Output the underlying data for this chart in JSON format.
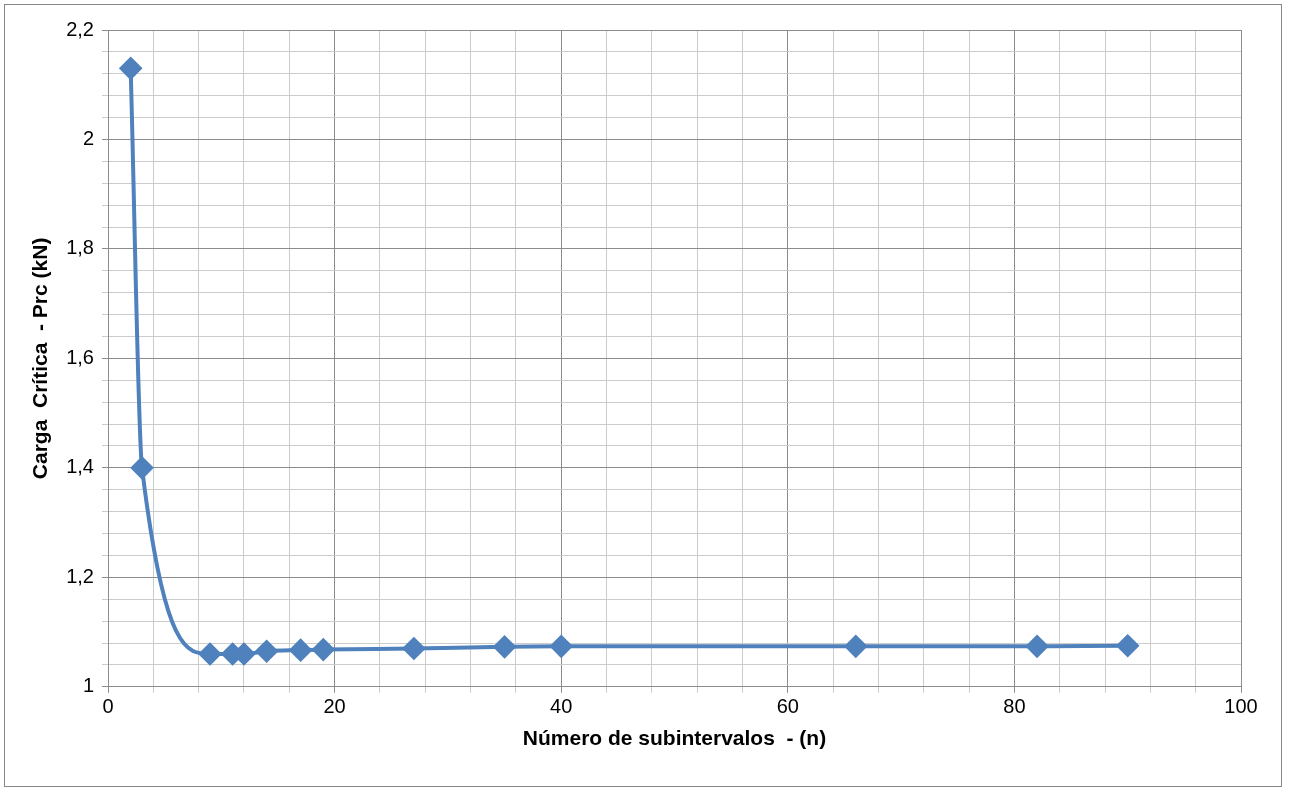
{
  "chart_data": {
    "type": "line",
    "xlabel": "Número de subintervalos  - (n)",
    "ylabel": "Carga  Crítica  - Prc (kN)",
    "x": [
      2,
      3,
      9,
      11,
      12,
      14,
      17,
      19,
      27,
      35,
      40,
      66,
      82,
      90
    ],
    "series": [
      {
        "color": "#4f81bd",
        "values": [
          2.13,
          1.4,
          1.06,
          1.06,
          1.06,
          1.065,
          1.067,
          1.068,
          1.07,
          1.073,
          1.074,
          1.074,
          1.074,
          1.075
        ]
      }
    ],
    "xlim": [
      0,
      100
    ],
    "xticks": [
      0,
      {
        "value": 4,
        "label": null
      },
      {
        "value": 8,
        "label": null
      },
      {
        "value": 12,
        "label": null
      },
      {
        "value": 16,
        "label": null
      },
      20,
      {
        "value": 24,
        "label": null
      },
      {
        "value": 28,
        "label": null
      },
      {
        "value": 32,
        "label": null
      },
      {
        "value": 36,
        "label": null
      },
      40,
      {
        "value": 44,
        "label": null
      },
      {
        "value": 48,
        "label": null
      },
      {
        "value": 52,
        "label": null
      },
      {
        "value": 56,
        "label": null
      },
      60,
      {
        "value": 64,
        "label": null
      },
      {
        "value": 68,
        "label": null
      },
      {
        "value": 72,
        "label": null
      },
      {
        "value": 76,
        "label": null
      },
      80,
      {
        "value": 84,
        "label": null
      },
      {
        "value": 88,
        "label": null
      },
      {
        "value": 92,
        "label": null
      },
      {
        "value": 96,
        "label": null
      },
      100
    ],
    "ylim": [
      1,
      2.2
    ],
    "yticks": [
      1,
      {
        "value": 1.04,
        "label": null
      },
      {
        "value": 1.08,
        "label": null
      },
      {
        "value": 1.12,
        "label": null
      },
      {
        "value": 1.16,
        "label": null
      },
      {
        "value": 1.2,
        "label": "1,2"
      },
      {
        "value": 1.24,
        "label": null
      },
      {
        "value": 1.28,
        "label": null
      },
      {
        "value": 1.32,
        "label": null
      },
      {
        "value": 1.36,
        "label": null
      },
      {
        "value": 1.4,
        "label": "1,4"
      },
      {
        "value": 1.44,
        "label": null
      },
      {
        "value": 1.48,
        "label": null
      },
      {
        "value": 1.52,
        "label": null
      },
      {
        "value": 1.56,
        "label": null
      },
      {
        "value": 1.6,
        "label": "1,6"
      },
      {
        "value": 1.64,
        "label": null
      },
      {
        "value": 1.68,
        "label": null
      },
      {
        "value": 1.72,
        "label": null
      },
      {
        "value": 1.76,
        "label": null
      },
      {
        "value": 1.8,
        "label": "1,8"
      },
      {
        "value": 1.84,
        "label": null
      },
      {
        "value": 1.88,
        "label": null
      },
      {
        "value": 1.92,
        "label": null
      },
      {
        "value": 1.96,
        "label": null
      },
      2,
      {
        "value": 2.04,
        "label": null
      },
      {
        "value": 2.08,
        "label": null
      },
      {
        "value": 2.12,
        "label": null
      },
      {
        "value": 2.16,
        "label": null
      },
      {
        "value": 2.2,
        "label": "2,2"
      }
    ],
    "grid": true,
    "marker": "diamond",
    "line_style": "solid",
    "legend": false
  }
}
